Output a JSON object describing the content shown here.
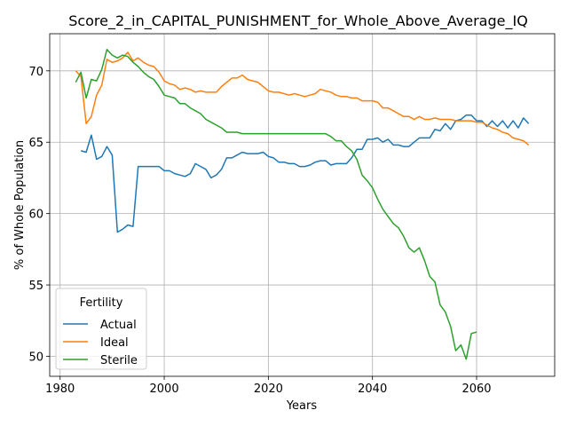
{
  "chart_data": {
    "type": "line",
    "title": "Score_2_in_CAPITAL_PUNISHMENT_for_Whole_Above_Average_IQ",
    "xlabel": "Years",
    "ylabel": "% of Whole Population",
    "xlim": [
      1978,
      2075
    ],
    "ylim": [
      48.6,
      72.6
    ],
    "xticks": [
      1980,
      2000,
      2020,
      2040,
      2060
    ],
    "yticks": [
      50,
      55,
      60,
      65,
      70
    ],
    "grid": true,
    "legend": {
      "title": "Fertility",
      "placement": "lower-left"
    },
    "series": [
      {
        "name": "Actual",
        "color": "#1f77b4",
        "x": [
          1984,
          1985,
          1986,
          1987,
          1988,
          1989,
          1990,
          1991,
          1992,
          1993,
          1994,
          1995,
          1996,
          1997,
          1998,
          1999,
          2000,
          2001,
          2002,
          2003,
          2004,
          2005,
          2006,
          2007,
          2008,
          2009,
          2010,
          2011,
          2012,
          2013,
          2014,
          2015,
          2016,
          2017,
          2018,
          2019,
          2020,
          2021,
          2022,
          2023,
          2024,
          2025,
          2026,
          2027,
          2028,
          2029,
          2030,
          2031,
          2032,
          2033,
          2034,
          2035,
          2036,
          2037,
          2038,
          2039,
          2040,
          2041,
          2042,
          2043,
          2044,
          2045,
          2046,
          2047,
          2048,
          2049,
          2050,
          2051,
          2052,
          2053,
          2054,
          2055,
          2056,
          2057,
          2058,
          2059,
          2060,
          2061,
          2062,
          2063,
          2064,
          2065,
          2066,
          2067,
          2068,
          2069,
          2070
        ],
        "y": [
          64.4,
          64.3,
          65.5,
          63.8,
          64.0,
          64.7,
          64.1,
          58.7,
          58.9,
          59.2,
          59.1,
          63.3,
          63.3,
          63.3,
          63.3,
          63.3,
          63.0,
          63.0,
          62.8,
          62.7,
          62.6,
          62.8,
          63.5,
          63.3,
          63.1,
          62.5,
          62.7,
          63.1,
          63.9,
          63.9,
          64.1,
          64.3,
          64.2,
          64.2,
          64.2,
          64.3,
          64.0,
          63.9,
          63.6,
          63.6,
          63.5,
          63.5,
          63.3,
          63.3,
          63.4,
          63.6,
          63.7,
          63.7,
          63.4,
          63.5,
          63.5,
          63.5,
          63.9,
          64.5,
          64.5,
          65.2,
          65.2,
          65.3,
          65.0,
          65.2,
          64.8,
          64.8,
          64.7,
          64.7,
          65.0,
          65.3,
          65.3,
          65.3,
          65.9,
          65.8,
          66.3,
          65.9,
          66.5,
          66.6,
          66.9,
          66.9,
          66.5,
          66.5,
          66.1,
          66.5,
          66.1,
          66.5,
          66.0,
          66.5,
          66.0,
          66.7,
          66.3
        ]
      },
      {
        "name": "Ideal",
        "color": "#ff7f0e",
        "x": [
          1983,
          1984,
          1985,
          1986,
          1987,
          1988,
          1989,
          1990,
          1991,
          1992,
          1993,
          1994,
          1995,
          1996,
          1997,
          1998,
          1999,
          2000,
          2001,
          2002,
          2003,
          2004,
          2005,
          2006,
          2007,
          2008,
          2009,
          2010,
          2011,
          2012,
          2013,
          2014,
          2015,
          2016,
          2017,
          2018,
          2019,
          2020,
          2021,
          2022,
          2023,
          2024,
          2025,
          2026,
          2027,
          2028,
          2029,
          2030,
          2031,
          2032,
          2033,
          2034,
          2035,
          2036,
          2037,
          2038,
          2039,
          2040,
          2041,
          2042,
          2043,
          2044,
          2045,
          2046,
          2047,
          2048,
          2049,
          2050,
          2051,
          2052,
          2053,
          2054,
          2055,
          2056,
          2057,
          2058,
          2059,
          2060,
          2061,
          2062,
          2063,
          2064,
          2065,
          2066,
          2067,
          2068,
          2069,
          2070
        ],
        "y": [
          70.0,
          69.6,
          66.3,
          66.8,
          68.3,
          69.0,
          70.8,
          70.6,
          70.7,
          70.9,
          71.3,
          70.7,
          70.9,
          70.6,
          70.4,
          70.3,
          69.9,
          69.3,
          69.1,
          69.0,
          68.7,
          68.8,
          68.7,
          68.5,
          68.6,
          68.5,
          68.5,
          68.5,
          68.9,
          69.2,
          69.5,
          69.5,
          69.7,
          69.4,
          69.3,
          69.2,
          68.9,
          68.6,
          68.5,
          68.5,
          68.4,
          68.3,
          68.4,
          68.3,
          68.2,
          68.3,
          68.4,
          68.7,
          68.6,
          68.5,
          68.3,
          68.2,
          68.2,
          68.1,
          68.1,
          67.9,
          67.9,
          67.9,
          67.8,
          67.4,
          67.4,
          67.2,
          67.0,
          66.8,
          66.8,
          66.6,
          66.8,
          66.6,
          66.6,
          66.7,
          66.6,
          66.6,
          66.6,
          66.5,
          66.5,
          66.5,
          66.5,
          66.4,
          66.4,
          66.2,
          66.0,
          65.9,
          65.7,
          65.6,
          65.3,
          65.2,
          65.1,
          64.8
        ]
      },
      {
        "name": "Sterile",
        "color": "#2ca02c",
        "x": [
          1983,
          1984,
          1985,
          1986,
          1987,
          1988,
          1989,
          1990,
          1991,
          1992,
          1993,
          1994,
          1995,
          1996,
          1997,
          1998,
          1999,
          2000,
          2001,
          2002,
          2003,
          2004,
          2005,
          2006,
          2007,
          2008,
          2009,
          2010,
          2011,
          2012,
          2013,
          2014,
          2015,
          2016,
          2017,
          2018,
          2019,
          2020,
          2021,
          2022,
          2023,
          2024,
          2025,
          2026,
          2027,
          2028,
          2029,
          2030,
          2031,
          2032,
          2033,
          2034,
          2035,
          2036,
          2037,
          2038,
          2039,
          2040,
          2041,
          2042,
          2043,
          2044,
          2045,
          2046,
          2047,
          2048,
          2049,
          2050,
          2051,
          2052,
          2053,
          2054,
          2055,
          2056,
          2057,
          2058,
          2059,
          2060
        ],
        "y": [
          69.2,
          69.9,
          68.1,
          69.4,
          69.3,
          70.1,
          71.5,
          71.1,
          70.9,
          71.1,
          71.0,
          70.6,
          70.3,
          69.9,
          69.6,
          69.4,
          68.9,
          68.3,
          68.2,
          68.1,
          67.7,
          67.7,
          67.4,
          67.2,
          67.0,
          66.6,
          66.4,
          66.2,
          66.0,
          65.7,
          65.7,
          65.7,
          65.6,
          65.6,
          65.6,
          65.6,
          65.6,
          65.6,
          65.6,
          65.6,
          65.6,
          65.6,
          65.6,
          65.6,
          65.6,
          65.6,
          65.6,
          65.6,
          65.6,
          65.4,
          65.1,
          65.1,
          64.7,
          64.4,
          63.8,
          62.7,
          62.3,
          61.8,
          61.0,
          60.3,
          59.8,
          59.3,
          59.0,
          58.4,
          57.6,
          57.3,
          57.6,
          56.7,
          55.6,
          55.2,
          53.6,
          53.1,
          52.1,
          50.4,
          50.8,
          49.8,
          51.6,
          51.7
        ]
      }
    ]
  }
}
